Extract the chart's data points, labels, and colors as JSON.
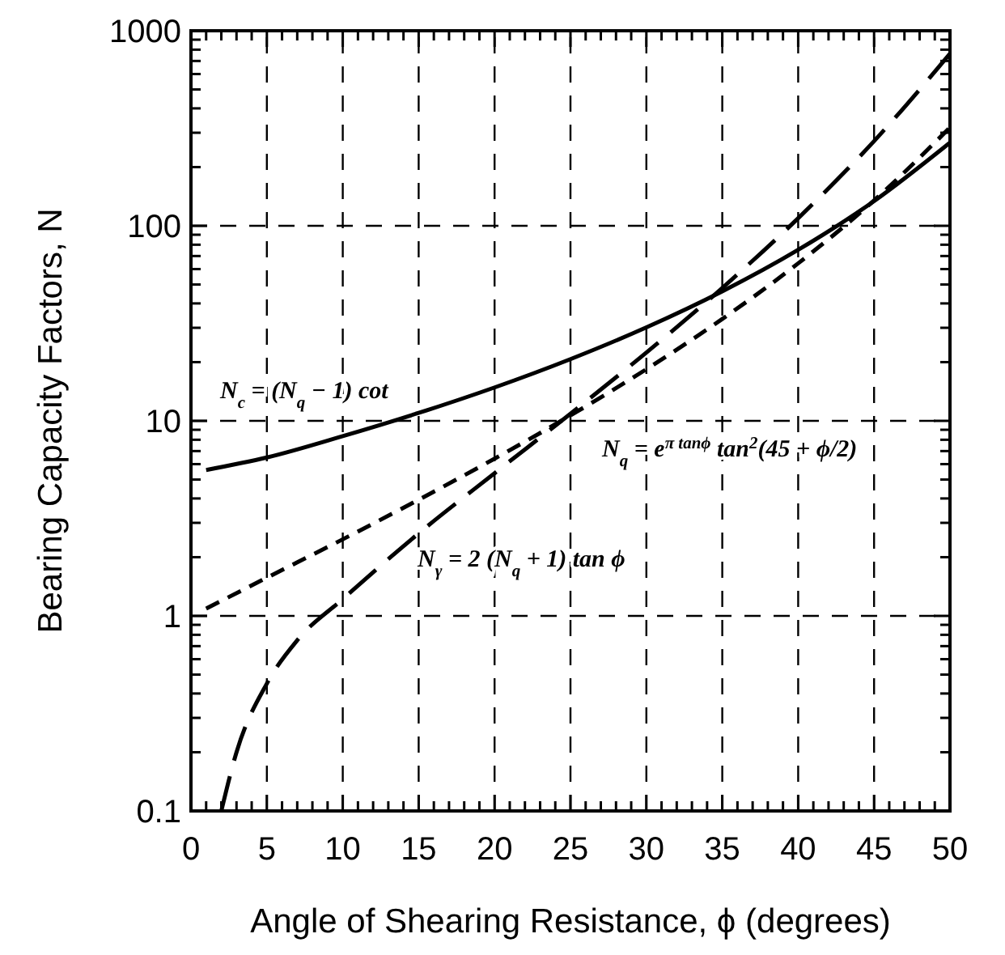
{
  "chart_data": {
    "type": "line",
    "xlabel": "Angle of Shearing Resistance, ϕ (degrees)",
    "ylabel": "Bearing Capacity Factors, N",
    "log": "y",
    "grid": true,
    "xlim": [
      0,
      50
    ],
    "ylim": [
      0.1,
      1000
    ],
    "xticks": [
      0,
      {
        "value": 1,
        "label": null
      },
      {
        "value": 2,
        "label": null
      },
      {
        "value": 3,
        "label": null
      },
      {
        "value": 4,
        "label": null
      },
      5,
      {
        "value": 6,
        "label": null
      },
      {
        "value": 7,
        "label": null
      },
      {
        "value": 8,
        "label": null
      },
      {
        "value": 9,
        "label": null
      },
      10,
      {
        "value": 11,
        "label": null
      },
      {
        "value": 12,
        "label": null
      },
      {
        "value": 13,
        "label": null
      },
      {
        "value": 14,
        "label": null
      },
      15,
      {
        "value": 16,
        "label": null
      },
      {
        "value": 17,
        "label": null
      },
      {
        "value": 18,
        "label": null
      },
      {
        "value": 19,
        "label": null
      },
      20,
      {
        "value": 21,
        "label": null
      },
      {
        "value": 22,
        "label": null
      },
      {
        "value": 23,
        "label": null
      },
      {
        "value": 24,
        "label": null
      },
      25,
      {
        "value": 26,
        "label": null
      },
      {
        "value": 27,
        "label": null
      },
      {
        "value": 28,
        "label": null
      },
      {
        "value": 29,
        "label": null
      },
      30,
      {
        "value": 31,
        "label": null
      },
      {
        "value": 32,
        "label": null
      },
      {
        "value": 33,
        "label": null
      },
      {
        "value": 34,
        "label": null
      },
      35,
      {
        "value": 36,
        "label": null
      },
      {
        "value": 37,
        "label": null
      },
      {
        "value": 38,
        "label": null
      },
      {
        "value": 39,
        "label": null
      },
      40,
      {
        "value": 41,
        "label": null
      },
      {
        "value": 42,
        "label": null
      },
      {
        "value": 43,
        "label": null
      },
      {
        "value": 44,
        "label": null
      },
      45,
      {
        "value": 46,
        "label": null
      },
      {
        "value": 47,
        "label": null
      },
      {
        "value": 48,
        "label": null
      },
      {
        "value": 49,
        "label": null
      },
      50
    ],
    "yticks": [
      0.1,
      {
        "value": 0.2,
        "label": null
      },
      {
        "value": 0.3,
        "label": null
      },
      {
        "value": 0.4,
        "label": null
      },
      {
        "value": 0.5,
        "label": null
      },
      {
        "value": 0.6,
        "label": null
      },
      {
        "value": 0.7,
        "label": null
      },
      {
        "value": 0.8,
        "label": null
      },
      {
        "value": 0.9,
        "label": null
      },
      1,
      {
        "value": 2,
        "label": null
      },
      {
        "value": 3,
        "label": null
      },
      {
        "value": 4,
        "label": null
      },
      {
        "value": 5,
        "label": null
      },
      {
        "value": 6,
        "label": null
      },
      {
        "value": 7,
        "label": null
      },
      {
        "value": 8,
        "label": null
      },
      {
        "value": 9,
        "label": null
      },
      10,
      {
        "value": 20,
        "label": null
      },
      {
        "value": 30,
        "label": null
      },
      {
        "value": 40,
        "label": null
      },
      {
        "value": 50,
        "label": null
      },
      {
        "value": 60,
        "label": null
      },
      {
        "value": 70,
        "label": null
      },
      {
        "value": 80,
        "label": null
      },
      {
        "value": 90,
        "label": null
      },
      100,
      {
        "value": 200,
        "label": null
      },
      {
        "value": 300,
        "label": null
      },
      {
        "value": 400,
        "label": null
      },
      {
        "value": 500,
        "label": null
      },
      {
        "value": 600,
        "label": null
      },
      {
        "value": 700,
        "label": null
      },
      {
        "value": 800,
        "label": null
      },
      {
        "value": 900,
        "label": null
      },
      1000
    ],
    "series": [
      {
        "color": "#000000",
        "line_style": "solid",
        "x": [
          1,
          5,
          10,
          15,
          20,
          25,
          30,
          35,
          40,
          45,
          50
        ],
        "values": [
          5.6,
          6.49,
          8.35,
          10.98,
          14.83,
          20.72,
          30.14,
          46.12,
          75.31,
          133.9,
          266.9
        ]
      },
      {
        "color": "#000000",
        "line_style": "dashed",
        "x": [
          1,
          5,
          10,
          15,
          20,
          25,
          30,
          35,
          40,
          45,
          50
        ],
        "values": [
          1.09,
          1.57,
          2.47,
          3.94,
          6.4,
          10.66,
          18.4,
          33.3,
          64.2,
          134.9,
          319
        ]
      },
      {
        "color": "#000000",
        "line_style": "dashed",
        "x": [
          2,
          3,
          5,
          7,
          10,
          15,
          20,
          25,
          30,
          35,
          40,
          45,
          50
        ],
        "values": [
          0.1,
          0.2,
          0.45,
          0.75,
          1.22,
          2.65,
          5.39,
          10.88,
          22.4,
          48.03,
          109.4,
          271.8,
          762.9
        ]
      }
    ],
    "annotations": [
      "N$_{c}$ = (N$_{q}$ − 1) cot",
      "N$_{q}$ = e$^{π tanϕ}$ tan$^{2}$(45 + ϕ/2)",
      "N$_{γ}$ = 2 (N$_{q}$ + 1) tan ϕ"
    ]
  }
}
